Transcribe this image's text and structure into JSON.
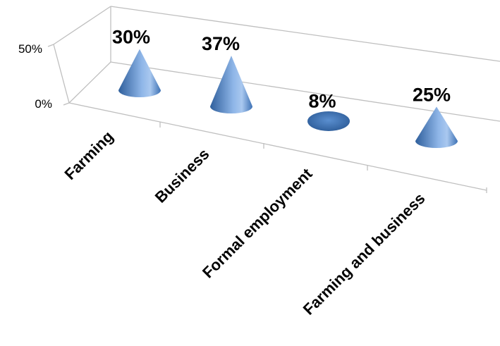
{
  "chart_data": {
    "type": "bar",
    "style": "3d-cone",
    "categories": [
      "Farming",
      "Business",
      "Formal employment",
      "Farming and business"
    ],
    "values": [
      30,
      37,
      8,
      25
    ],
    "data_labels": [
      "30%",
      "37%",
      "8%",
      "25%"
    ],
    "ylim": [
      0,
      50
    ],
    "y_ticks": [
      "0%",
      "50%"
    ],
    "grid": false,
    "legend": "none",
    "colors": {
      "cone_dark": "#2f5f9c",
      "cone_mid": "#4f86c9",
      "cone_light": "#a9c8ef",
      "axis": "#bfbfbf"
    }
  }
}
